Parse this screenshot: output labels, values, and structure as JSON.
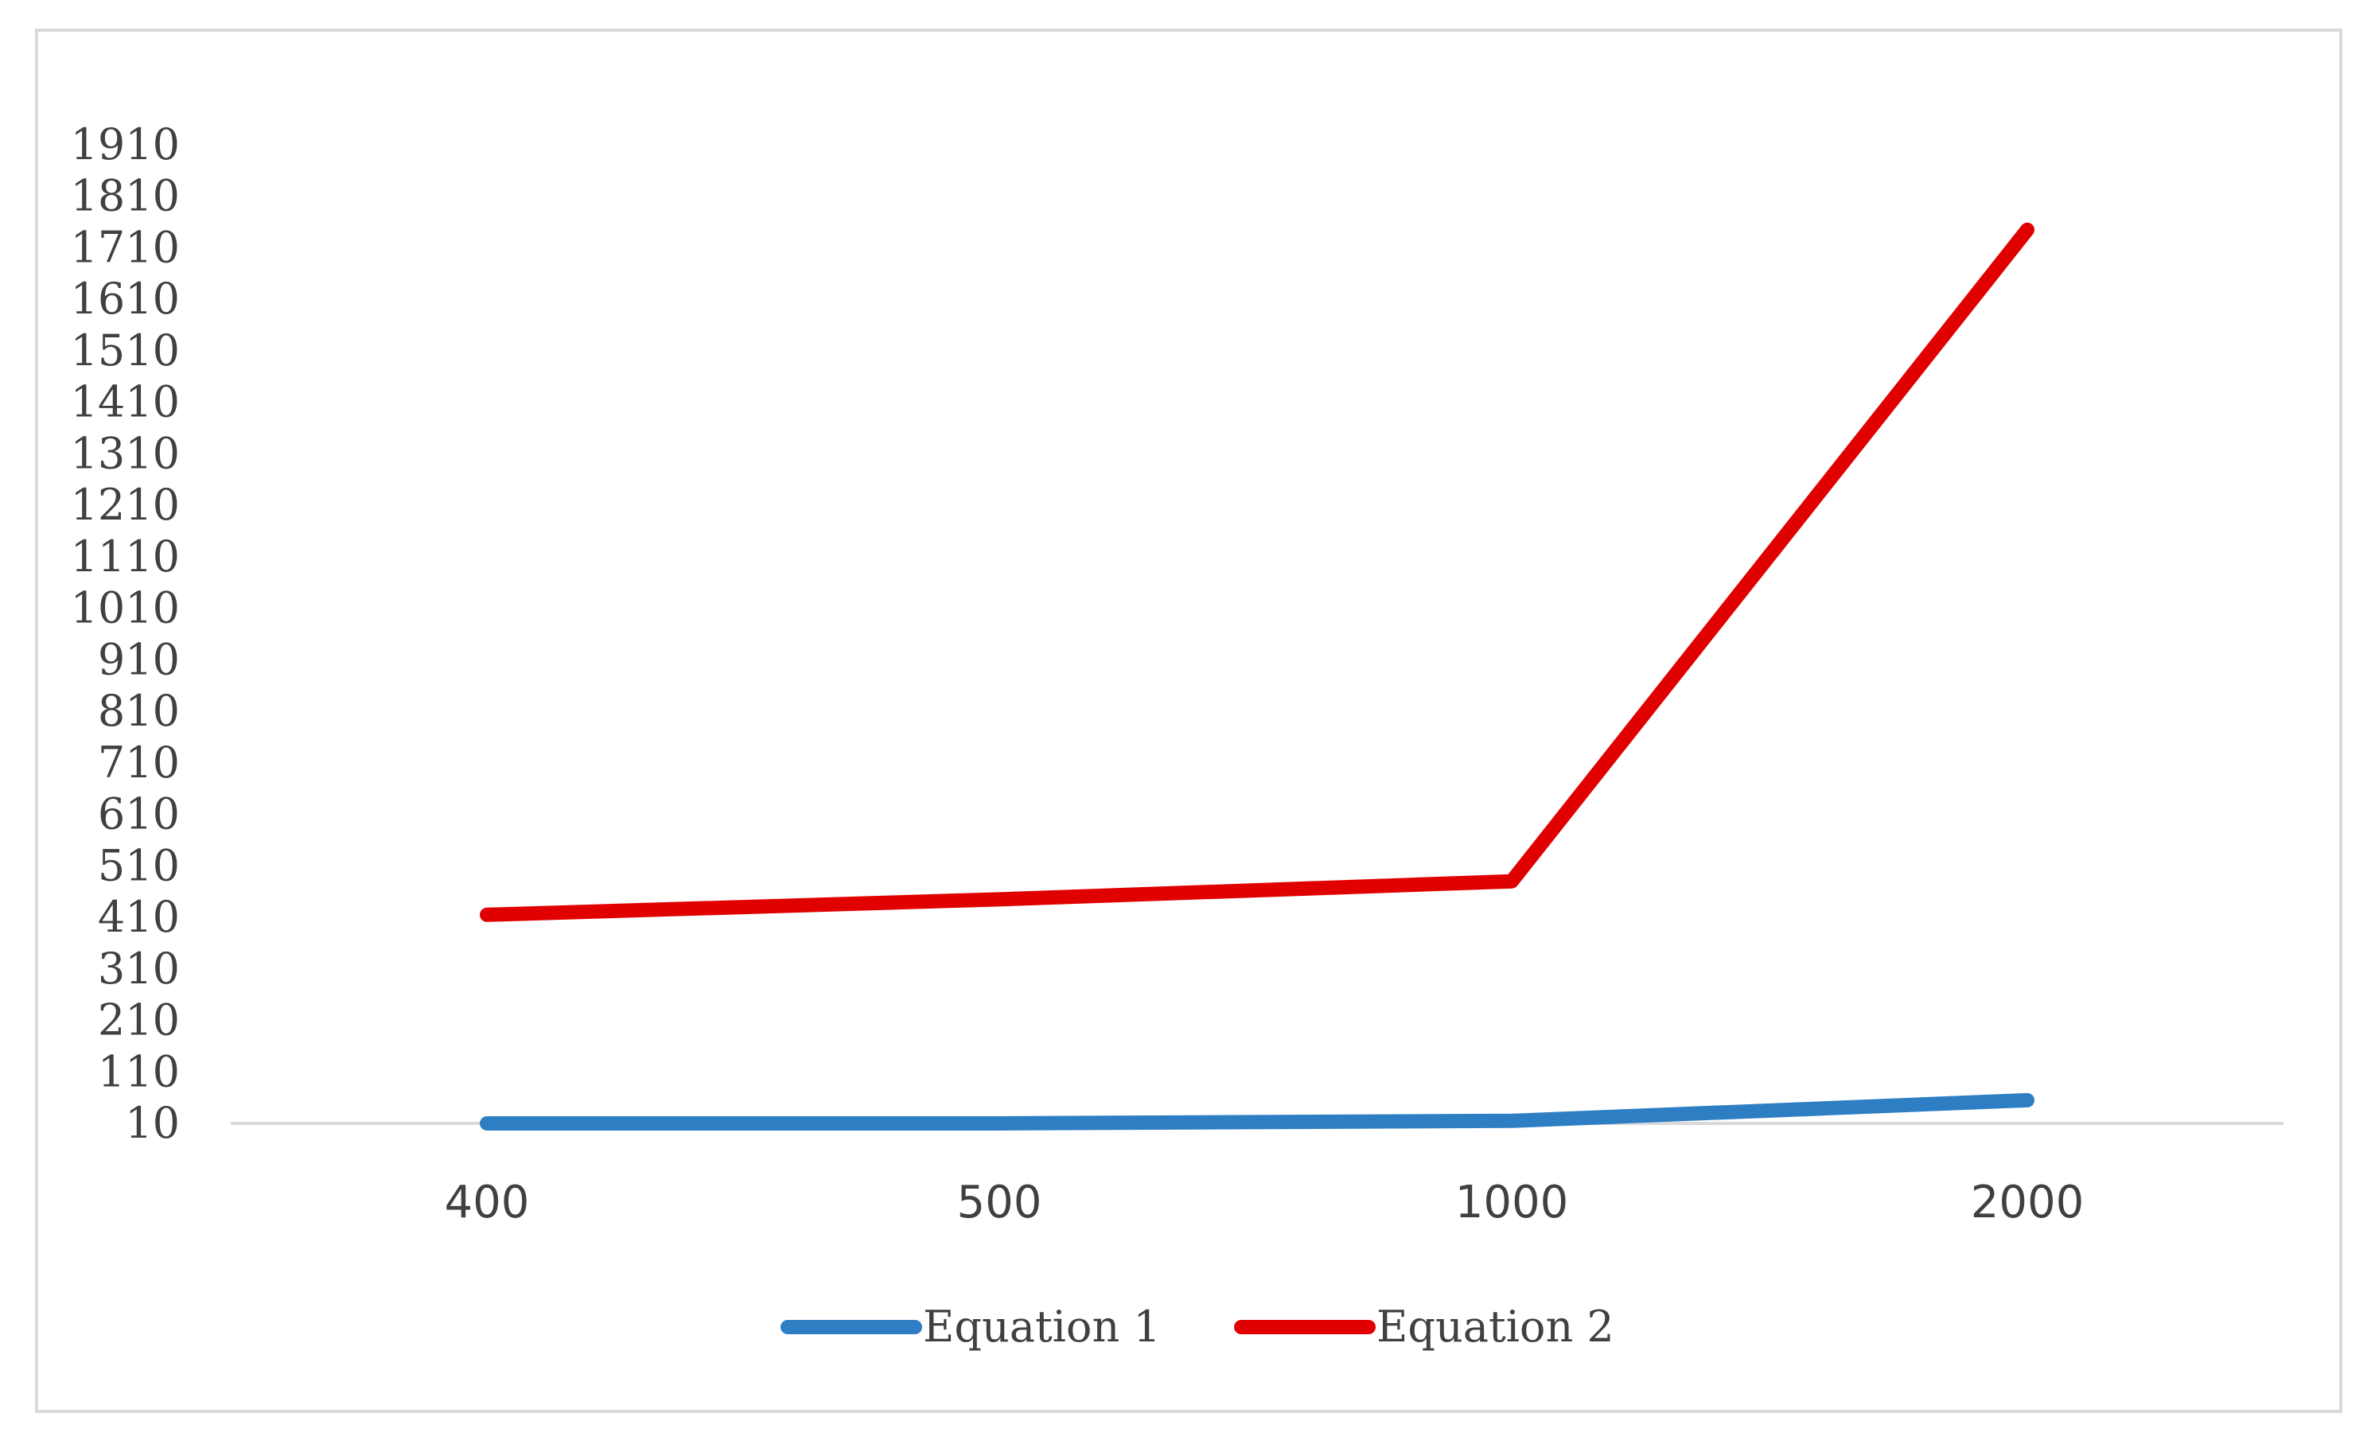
{
  "chart_data": {
    "type": "line",
    "categories": [
      "400",
      "500",
      "1000",
      "2000"
    ],
    "yticks": [
      "10",
      "110",
      "210",
      "310",
      "410",
      "510",
      "610",
      "710",
      "810",
      "910",
      "1010",
      "1110",
      "1210",
      "1310",
      "1410",
      "1510",
      "1610",
      "1710",
      "1810",
      "1910"
    ],
    "ylim": [
      10,
      1910
    ],
    "series": [
      {
        "name": "Equation 1",
        "color": "#2e7ec4",
        "values": [
          10,
          10,
          15,
          55
        ]
      },
      {
        "name": "Equation 2",
        "color": "#e00000",
        "values": [
          415,
          445,
          480,
          1745
        ]
      }
    ],
    "grid": false,
    "legend": "bottom",
    "axis_color": "#d9d9d9"
  }
}
